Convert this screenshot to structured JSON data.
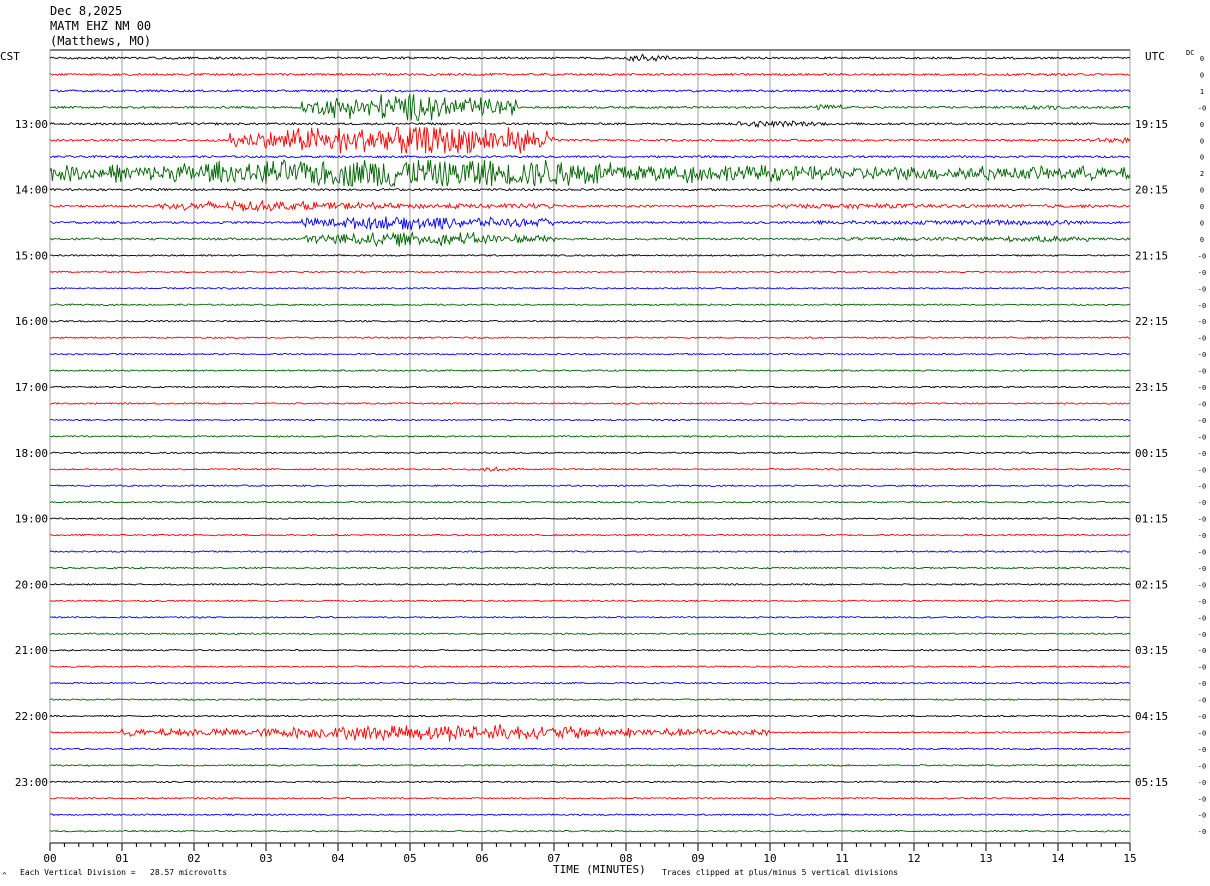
{
  "header": {
    "date": "Dec 8,2025",
    "station": "MATM EHZ NM 00",
    "location": "(Matthews, MO)"
  },
  "labels": {
    "left_tz": "CST",
    "right_tz": "UTC",
    "dc": "DC",
    "xlabel": "TIME (MINUTES)",
    "footer_left": "Each Vertical Division =   28.57 microvolts",
    "footer_right": "Traces clipped at plus/minus 5 vertical divisions",
    "corner_mark": "^"
  },
  "colors": {
    "trace_cycle": [
      "#000000",
      "#ff0000",
      "#0000ff",
      "#006400"
    ],
    "grid": "#888888",
    "background": "#ffffff"
  },
  "chart_data": {
    "type": "line",
    "description_type": "helicorder",
    "x_range": [
      0,
      15
    ],
    "xticks": [
      "00",
      "01",
      "02",
      "03",
      "04",
      "05",
      "06",
      "07",
      "08",
      "09",
      "10",
      "11",
      "12",
      "13",
      "14",
      "15"
    ],
    "row_minutes": 15,
    "row_count": 48,
    "left_hour_labels": [
      "13:00",
      "14:00",
      "15:00",
      "16:00",
      "17:00",
      "18:00",
      "19:00",
      "20:00",
      "21:00",
      "22:00",
      "23:00"
    ],
    "left_label_rows": [
      4,
      8,
      12,
      16,
      20,
      24,
      28,
      32,
      36,
      40,
      44
    ],
    "right_hour_labels": [
      "19:15",
      "20:15",
      "21:15",
      "22:15",
      "23:15",
      "00:15",
      "01:15",
      "02:15",
      "03:15",
      "04:15",
      "05:15"
    ],
    "right_label_rows": [
      4,
      8,
      12,
      16,
      20,
      24,
      28,
      32,
      36,
      40,
      44
    ],
    "dc_offsets": [
      "0",
      "0",
      "1",
      "-0",
      "0",
      "0",
      "0",
      "2",
      "0",
      "0",
      "0",
      "0",
      "-0",
      "-0",
      "-0",
      "-0",
      "-0",
      "-0",
      "-0",
      "-0",
      "-0",
      "-0",
      "-0",
      "-0",
      "-0",
      "-0",
      "-0",
      "-0",
      "-0",
      "-0",
      "-0",
      "-0",
      "-0",
      "-0",
      "-0",
      "-0",
      "-0",
      "-0",
      "-0",
      "-0",
      "-0",
      "-0",
      "-0",
      "-0",
      "-0",
      "-0",
      "-0",
      "-0"
    ],
    "clip_divisions": 5,
    "microvolts_per_division": 28.57,
    "events": [
      {
        "row": 7,
        "start_min": 0.0,
        "end_min": 15.0,
        "peak_min": 5.2,
        "amp": 5.0,
        "width": 3.2
      },
      {
        "row": 5,
        "start_min": 2.5,
        "end_min": 7.0,
        "peak_min": 5.0,
        "amp": 5.0,
        "width": 1.8
      },
      {
        "row": 3,
        "start_min": 3.5,
        "end_min": 6.5,
        "peak_min": 5.0,
        "amp": 4.0,
        "width": 1.2
      },
      {
        "row": 9,
        "start_min": 1.5,
        "end_min": 7.0,
        "peak_min": 3.0,
        "amp": 1.2,
        "width": 1.5
      },
      {
        "row": 10,
        "start_min": 3.5,
        "end_min": 7.0,
        "peak_min": 5.0,
        "amp": 2.0,
        "width": 1.2
      },
      {
        "row": 11,
        "start_min": 3.5,
        "end_min": 7.0,
        "peak_min": 5.0,
        "amp": 2.0,
        "width": 1.2
      },
      {
        "row": 41,
        "start_min": 1.0,
        "end_min": 10.0,
        "peak_min": 5.5,
        "amp": 2.4,
        "width": 2.2
      },
      {
        "row": 0,
        "start_min": 8.0,
        "end_min": 8.6,
        "peak_min": 8.25,
        "amp": 0.9,
        "width": 0.2
      },
      {
        "row": 4,
        "start_min": 9.5,
        "end_min": 10.8,
        "peak_min": 10.0,
        "amp": 0.7,
        "width": 0.5
      },
      {
        "row": 9,
        "start_min": 10.0,
        "end_min": 14.5,
        "peak_min": 11.0,
        "amp": 0.5,
        "width": 1.2
      },
      {
        "row": 10,
        "start_min": 10.5,
        "end_min": 14.5,
        "peak_min": 13.4,
        "amp": 0.7,
        "width": 0.8
      },
      {
        "row": 11,
        "start_min": 11.0,
        "end_min": 14.5,
        "peak_min": 13.8,
        "amp": 0.6,
        "width": 0.8
      },
      {
        "row": 3,
        "start_min": 10.5,
        "end_min": 11.0,
        "peak_min": 10.8,
        "amp": 0.6,
        "width": 0.2
      },
      {
        "row": 3,
        "start_min": 13.5,
        "end_min": 14.0,
        "peak_min": 13.8,
        "amp": 0.5,
        "width": 0.2
      },
      {
        "row": 5,
        "start_min": 14.3,
        "end_min": 15.0,
        "peak_min": 14.8,
        "amp": 0.6,
        "width": 0.2
      },
      {
        "row": 25,
        "start_min": 5.8,
        "end_min": 6.6,
        "peak_min": 6.1,
        "amp": 0.5,
        "width": 0.2
      }
    ]
  }
}
